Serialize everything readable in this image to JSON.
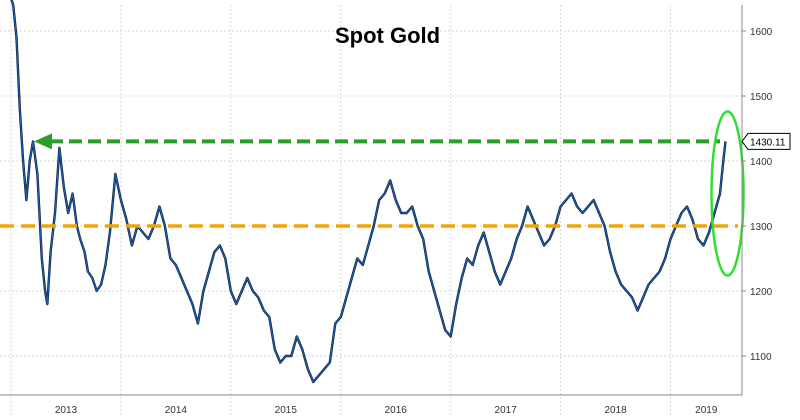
{
  "chart_data": {
    "type": "line",
    "title": "Spot Gold",
    "x_tick_labels": [
      "2013",
      "2014",
      "2015",
      "2016",
      "2017",
      "2018",
      "2019"
    ],
    "y_ticks": [
      1100,
      1200,
      1300,
      1400,
      1500,
      1600
    ],
    "ylim": [
      1040,
      1640
    ],
    "xlim": [
      2012.9,
      2019.65
    ],
    "grid": true,
    "series": [
      {
        "color": "#1f5fb0",
        "x": [
          2012.9,
          2012.94,
          2012.98,
          2013.02,
          2013.05,
          2013.08,
          2013.11,
          2013.14,
          2013.17,
          2013.2,
          2013.24,
          2013.28,
          2013.31,
          2013.33,
          2013.36,
          2013.4,
          2013.44,
          2013.48,
          2013.52,
          2013.56,
          2013.6,
          2013.63,
          2013.67,
          2013.7,
          2013.74,
          2013.78,
          2013.82,
          2013.86,
          2013.9,
          2013.95,
          2014.0,
          2014.05,
          2014.1,
          2014.15,
          2014.2,
          2014.25,
          2014.3,
          2014.35,
          2014.4,
          2014.45,
          2014.5,
          2014.55,
          2014.6,
          2014.65,
          2014.7,
          2014.75,
          2014.8,
          2014.85,
          2014.9,
          2014.95,
          2015.0,
          2015.05,
          2015.1,
          2015.15,
          2015.2,
          2015.25,
          2015.3,
          2015.35,
          2015.4,
          2015.45,
          2015.5,
          2015.55,
          2015.6,
          2015.65,
          2015.7,
          2015.75,
          2015.8,
          2015.85,
          2015.9,
          2015.95,
          2016.0,
          2016.05,
          2016.1,
          2016.15,
          2016.2,
          2016.25,
          2016.3,
          2016.35,
          2016.4,
          2016.45,
          2016.5,
          2016.55,
          2016.6,
          2016.65,
          2016.7,
          2016.75,
          2016.8,
          2016.85,
          2016.9,
          2016.95,
          2017.0,
          2017.05,
          2017.1,
          2017.15,
          2017.2,
          2017.25,
          2017.3,
          2017.35,
          2017.4,
          2017.45,
          2017.5,
          2017.55,
          2017.6,
          2017.65,
          2017.7,
          2017.75,
          2017.8,
          2017.85,
          2017.9,
          2017.95,
          2018.0,
          2018.05,
          2018.1,
          2018.15,
          2018.2,
          2018.25,
          2018.3,
          2018.35,
          2018.4,
          2018.45,
          2018.5,
          2018.55,
          2018.6,
          2018.65,
          2018.7,
          2018.75,
          2018.8,
          2018.85,
          2018.9,
          2018.95,
          2019.0,
          2019.05,
          2019.1,
          2019.15,
          2019.2,
          2019.25,
          2019.3,
          2019.35,
          2019.4,
          2019.45,
          2019.48,
          2019.5
        ],
        "y": [
          1650,
          1670,
          1660,
          1640,
          1590,
          1480,
          1400,
          1340,
          1400,
          1430,
          1380,
          1250,
          1200,
          1180,
          1260,
          1320,
          1420,
          1360,
          1320,
          1350,
          1300,
          1280,
          1260,
          1230,
          1220,
          1200,
          1210,
          1240,
          1290,
          1380,
          1340,
          1310,
          1270,
          1300,
          1290,
          1280,
          1300,
          1330,
          1300,
          1250,
          1240,
          1220,
          1200,
          1180,
          1150,
          1200,
          1230,
          1260,
          1270,
          1250,
          1200,
          1180,
          1200,
          1220,
          1200,
          1190,
          1170,
          1160,
          1110,
          1090,
          1100,
          1100,
          1130,
          1110,
          1080,
          1060,
          1070,
          1080,
          1090,
          1150,
          1160,
          1190,
          1220,
          1250,
          1240,
          1270,
          1300,
          1340,
          1350,
          1370,
          1340,
          1320,
          1320,
          1330,
          1300,
          1280,
          1230,
          1200,
          1170,
          1140,
          1130,
          1180,
          1220,
          1250,
          1240,
          1270,
          1290,
          1260,
          1230,
          1210,
          1230,
          1250,
          1280,
          1300,
          1330,
          1310,
          1290,
          1270,
          1280,
          1300,
          1330,
          1340,
          1350,
          1330,
          1320,
          1330,
          1340,
          1320,
          1300,
          1260,
          1230,
          1210,
          1200,
          1190,
          1170,
          1190,
          1210,
          1220,
          1230,
          1250,
          1280,
          1300,
          1320,
          1330,
          1310,
          1280,
          1270,
          1290,
          1320,
          1350,
          1400,
          1430.11
        ]
      }
    ],
    "annotations": [
      {
        "type": "hline",
        "y": 1300,
        "color": "#f0a500",
        "dash": true
      },
      {
        "type": "arrow",
        "y": 1430.11,
        "color": "#2aa02a",
        "direction": "left",
        "dash": true
      },
      {
        "type": "ellipse",
        "x_center": 2019.5,
        "y_center": 1350,
        "color": "#33dd33"
      }
    ],
    "last_value_label": "1430.11"
  }
}
